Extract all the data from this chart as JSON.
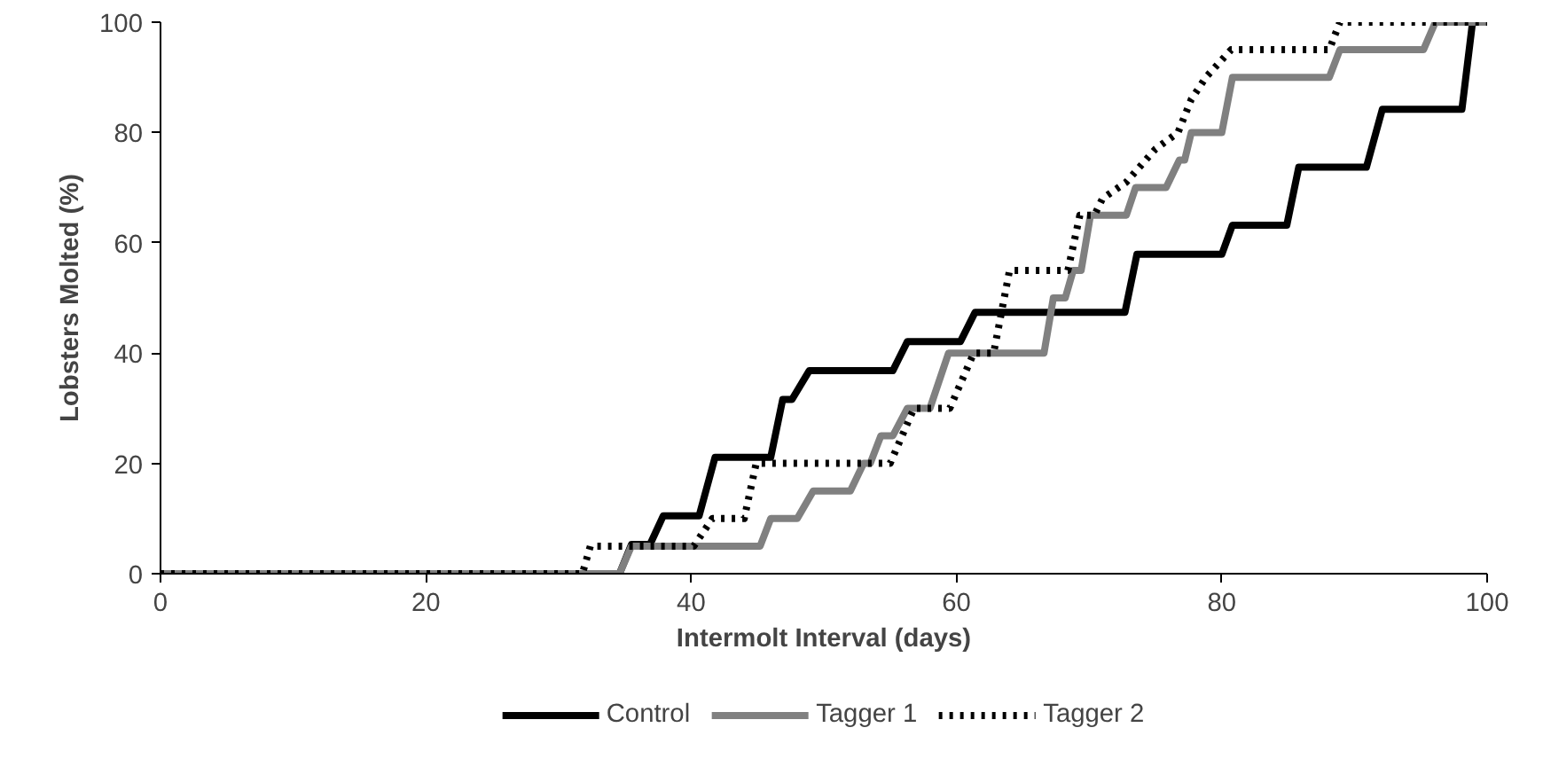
{
  "chart_data": {
    "type": "line",
    "xlabel": "Intermolt Interval (days)",
    "ylabel": "Lobsters Molted (%)",
    "xlim": [
      0,
      100
    ],
    "ylim": [
      0,
      100
    ],
    "xticks": [
      0,
      20,
      40,
      60,
      80,
      100
    ],
    "yticks": [
      0,
      20,
      40,
      60,
      80,
      100
    ],
    "grid": false,
    "legend": "bottom",
    "series": [
      {
        "name": "Control",
        "color": "#000000",
        "line_style": "solid",
        "x": [
          0,
          34.6,
          35.5,
          36.9,
          37.9,
          40.6,
          41.8,
          46.0,
          46.9,
          47.6,
          48.9,
          55.2,
          56.3,
          60.3,
          61.4,
          72.7,
          73.6,
          80.0,
          80.8,
          84.9,
          85.8,
          90.9,
          92.1,
          98.1,
          98.9,
          100
        ],
        "values": [
          0,
          0,
          5.3,
          5.3,
          10.5,
          10.5,
          21.1,
          21.1,
          31.6,
          31.6,
          36.8,
          36.8,
          42.1,
          42.1,
          47.4,
          47.4,
          57.9,
          57.9,
          63.2,
          63.2,
          73.7,
          73.7,
          84.2,
          84.2,
          100,
          100
        ]
      },
      {
        "name": "Tagger 1",
        "color": "#808080",
        "line_style": "solid",
        "x": [
          0,
          34.6,
          35.5,
          45.2,
          46.0,
          48.0,
          49.2,
          52.0,
          53.0,
          53.5,
          54.3,
          55.2,
          56.3,
          58.0,
          59.4,
          66.6,
          67.3,
          68.2,
          68.8,
          69.4,
          70.1,
          72.8,
          73.5,
          75.8,
          76.8,
          77.2,
          77.7,
          80.0,
          80.8,
          88.1,
          88.9,
          95.2,
          96.1,
          100
        ],
        "values": [
          0,
          0,
          5,
          5,
          10,
          10,
          15,
          15,
          20,
          20,
          25,
          25,
          30,
          30,
          40,
          40,
          50,
          50,
          55,
          55,
          65,
          65,
          70,
          70,
          75,
          75,
          80,
          80,
          90,
          90,
          95,
          95,
          100,
          100
        ]
      },
      {
        "name": "Tagger 2",
        "color": "#000000",
        "line_style": "dotted",
        "x": [
          0,
          31.8,
          32.4,
          40.2,
          41.6,
          44.0,
          44.9,
          55.0,
          56.8,
          59.5,
          61.3,
          62.8,
          64.0,
          68.4,
          69.3,
          70.4,
          71.0,
          72.8,
          75.0,
          76.7,
          77.7,
          78.8,
          80.7,
          88.1,
          88.9,
          100
        ],
        "values": [
          0,
          0,
          5,
          5,
          10,
          10,
          20,
          20,
          30,
          30,
          40,
          40,
          55,
          55,
          65,
          65,
          68,
          71,
          77,
          80,
          86,
          90,
          95,
          95,
          100,
          100
        ]
      }
    ]
  }
}
